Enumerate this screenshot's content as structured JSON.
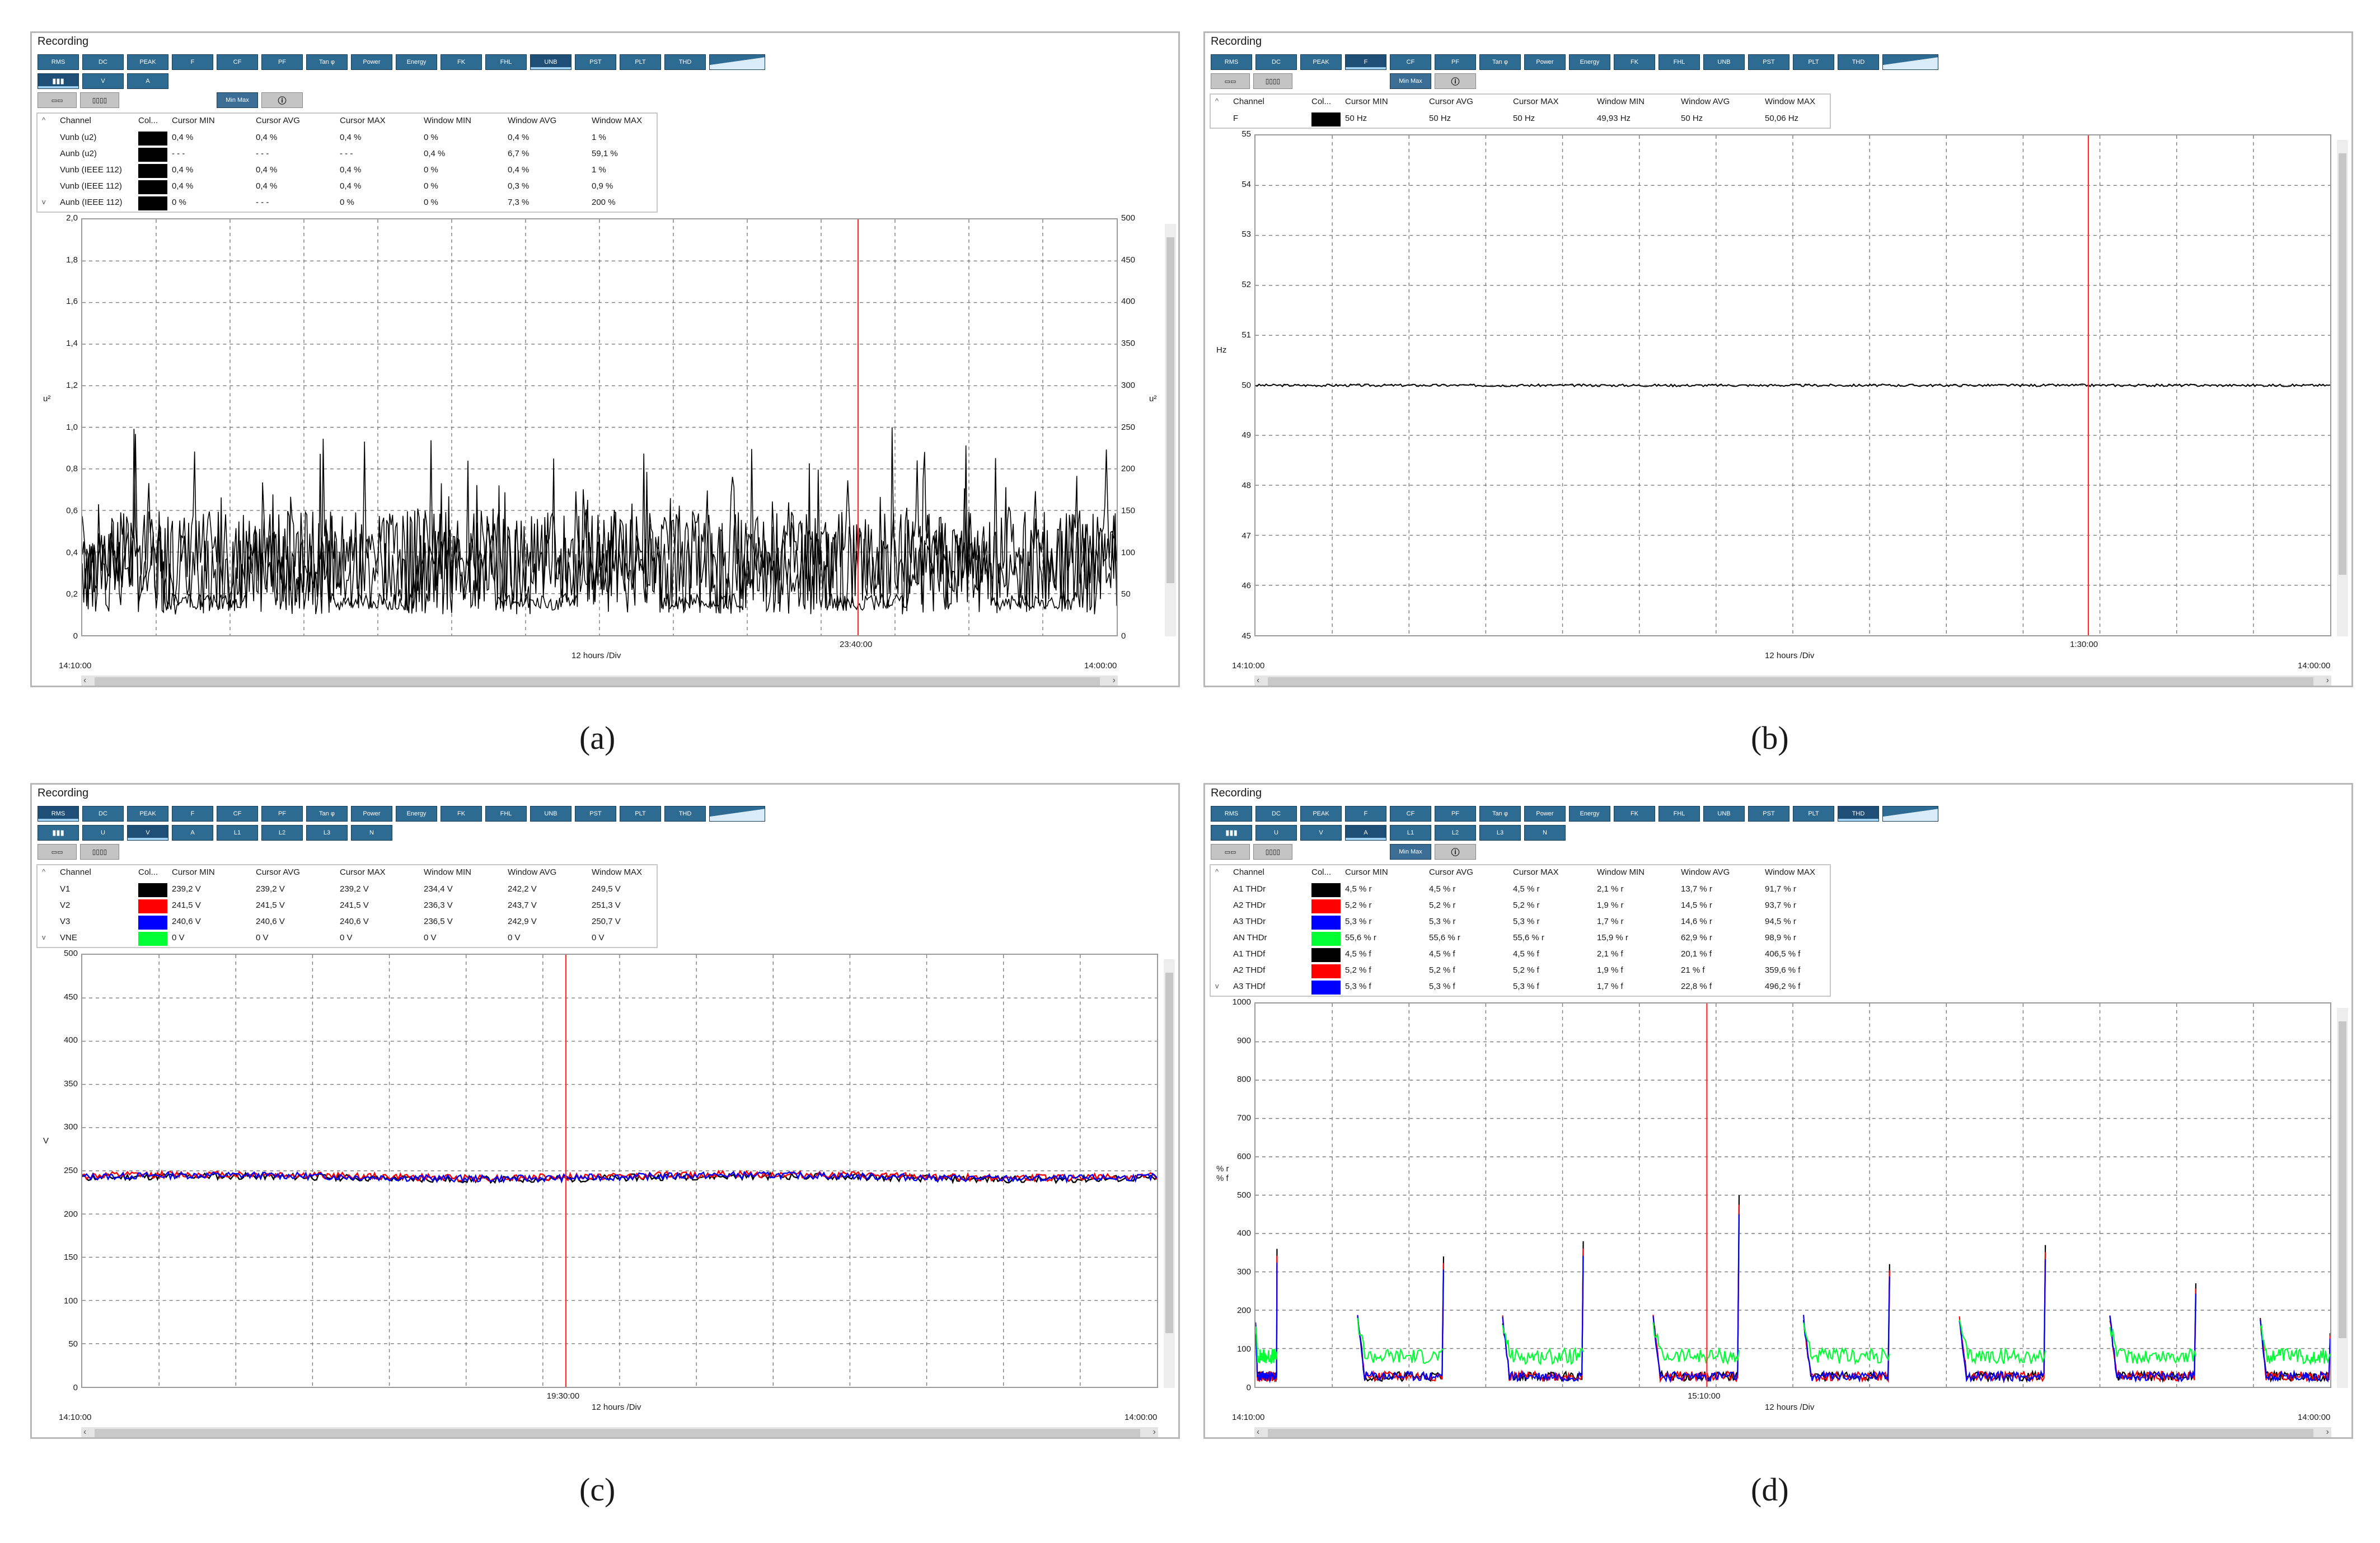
{
  "panels": [
    {
      "id": "a",
      "title": "Recording",
      "caption": "(a)",
      "toolbar1": [
        "RMS",
        "DC",
        "PEAK",
        "F",
        "CF",
        "PF",
        "Tan φ",
        "Power",
        "Energy",
        "FK",
        "FHL",
        "UNB",
        "PST",
        "PLT",
        "THD",
        ""
      ],
      "toolbar1_active": 11,
      "toolbar2": [
        "",
        "V",
        "A"
      ],
      "toolbar2_active": 0,
      "toolbar3": [
        "Min Max"
      ],
      "show_info_button": true,
      "table_headers": [
        "Channel",
        "Col...",
        "Cursor MIN",
        "Cursor AVG",
        "Cursor MAX",
        "Window MIN",
        "Window AVG",
        "Window MAX"
      ],
      "rows": [
        {
          "channel": "Vunb (u2)",
          "color": "#000000",
          "cmin": "0,4 %",
          "cavg": "0,4 %",
          "cmax": "0,4 %",
          "wmin": "0 %",
          "wavg": "0,4 %",
          "wmax": "1 %"
        },
        {
          "channel": "Aunb (u2)",
          "color": "#000000",
          "cmin": "- - -",
          "cavg": "- - -",
          "cmax": "- - -",
          "wmin": "0,4 %",
          "wavg": "6,7 %",
          "wmax": "59,1 %"
        },
        {
          "channel": "Vunb (IEEE 112)",
          "color": "#000000",
          "cmin": "0,4 %",
          "cavg": "0,4 %",
          "cmax": "0,4 %",
          "wmin": "0 %",
          "wavg": "0,4 %",
          "wmax": "1 %"
        },
        {
          "channel": "Vunb (IEEE 112)",
          "color": "#000000",
          "cmin": "0,4 %",
          "cavg": "0,4 %",
          "cmax": "0,4 %",
          "wmin": "0 %",
          "wavg": "0,3 %",
          "wmax": "0,9 %"
        },
        {
          "channel": "Aunb (IEEE 112)",
          "color": "#000000",
          "cmin": "0 %",
          "cavg": "- - -",
          "cmax": "0 %",
          "wmin": "0 %",
          "wavg": "7,3 %",
          "wmax": "200 %"
        }
      ],
      "yaxis_ticks": [
        "2,0",
        "1,8",
        "1,6",
        "1,4",
        "1,2",
        "1,0",
        "0,8",
        "0,6",
        "0,4",
        "0,2",
        "0"
      ],
      "yaxis_label": "u²",
      "yaxis2_ticks": [
        "500",
        "450",
        "400",
        "350",
        "300",
        "250",
        "200",
        "150",
        "100",
        "50",
        "0"
      ],
      "yaxis2_label": "u²",
      "x_start": "14:10:00",
      "x_end": "14:00:00",
      "x_div": "12 hours /Div",
      "cursor_label": "23:40:00",
      "chart_data": {
        "type": "line",
        "ylim": [
          0,
          2.0
        ],
        "y2lim": [
          0,
          500
        ],
        "cursor_fraction": 0.75,
        "grid": true,
        "series_color": "#000000",
        "x": "time 14:10:00 to 14:00:00",
        "signal": "unbalance — noisy trace mostly between 0 and 1,0"
      }
    },
    {
      "id": "b",
      "title": "Recording",
      "caption": "(b)",
      "toolbar1": [
        "RMS",
        "DC",
        "PEAK",
        "F",
        "CF",
        "PF",
        "Tan φ",
        "Power",
        "Energy",
        "FK",
        "FHL",
        "UNB",
        "PST",
        "PLT",
        "THD",
        ""
      ],
      "toolbar1_active": 3,
      "toolbar2": [],
      "toolbar2_active": -1,
      "toolbar3": [
        "Min Max"
      ],
      "show_info_button": true,
      "table_headers": [
        "Channel",
        "Col...",
        "Cursor MIN",
        "Cursor AVG",
        "Cursor MAX",
        "Window MIN",
        "Window AVG",
        "Window MAX"
      ],
      "rows": [
        {
          "channel": "F",
          "color": "#000000",
          "cmin": "50 Hz",
          "cavg": "50 Hz",
          "cmax": "50 Hz",
          "wmin": "49,93 Hz",
          "wavg": "50 Hz",
          "wmax": "50,06 Hz"
        }
      ],
      "yaxis_ticks": [
        "55",
        "54",
        "53",
        "52",
        "51",
        "50",
        "49",
        "48",
        "47",
        "46",
        "45"
      ],
      "yaxis_label": "Hz",
      "yaxis2_ticks": [],
      "yaxis2_label": "",
      "x_start": "14:10:00",
      "x_end": "14:00:00",
      "x_div": "12 hours /Div",
      "cursor_label": "1:30:00",
      "chart_data": {
        "type": "line",
        "ylim": [
          45,
          55
        ],
        "cursor_fraction": 0.775,
        "grid": true,
        "series": [
          {
            "name": "F",
            "color": "#000000",
            "level": 50.0
          }
        ]
      }
    },
    {
      "id": "c",
      "title": "Recording",
      "caption": "(c)",
      "toolbar1": [
        "RMS",
        "DC",
        "PEAK",
        "F",
        "CF",
        "PF",
        "Tan φ",
        "Power",
        "Energy",
        "FK",
        "FHL",
        "UNB",
        "PST",
        "PLT",
        "THD",
        ""
      ],
      "toolbar1_active": 0,
      "toolbar2": [
        "",
        "U",
        "V",
        "A",
        "L1",
        "L2",
        "L3",
        "N"
      ],
      "toolbar2_active": 2,
      "toolbar3": [],
      "show_info_button": false,
      "table_headers": [
        "Channel",
        "Col...",
        "Cursor MIN",
        "Cursor AVG",
        "Cursor MAX",
        "Window MIN",
        "Window AVG",
        "Window MAX"
      ],
      "rows": [
        {
          "channel": "V1",
          "color": "#000000",
          "cmin": "239,2 V",
          "cavg": "239,2 V",
          "cmax": "239,2 V",
          "wmin": "234,4 V",
          "wavg": "242,2 V",
          "wmax": "249,5 V"
        },
        {
          "channel": "V2",
          "color": "#ff0000",
          "cmin": "241,5 V",
          "cavg": "241,5 V",
          "cmax": "241,5 V",
          "wmin": "236,3 V",
          "wavg": "243,7 V",
          "wmax": "251,3 V"
        },
        {
          "channel": "V3",
          "color": "#0000ff",
          "cmin": "240,6 V",
          "cavg": "240,6 V",
          "cmax": "240,6 V",
          "wmin": "236,5 V",
          "wavg": "242,9 V",
          "wmax": "250,7 V"
        },
        {
          "channel": "VNE",
          "color": "#00ff33",
          "cmin": "0 V",
          "cavg": "0 V",
          "cmax": "0 V",
          "wmin": "0 V",
          "wavg": "0 V",
          "wmax": "0 V"
        }
      ],
      "yaxis_ticks": [
        "500",
        "450",
        "400",
        "350",
        "300",
        "250",
        "200",
        "150",
        "100",
        "50",
        "0"
      ],
      "yaxis_label": "V",
      "yaxis2_ticks": [],
      "yaxis2_label": "",
      "x_start": "14:10:00",
      "x_end": "14:00:00",
      "x_div": "12 hours /Div",
      "cursor_label": "19:30:00",
      "chart_data": {
        "type": "line",
        "ylim": [
          0,
          500
        ],
        "cursor_fraction": 0.45,
        "grid": true,
        "series": [
          {
            "name": "V1",
            "color": "#000000",
            "level": 242
          },
          {
            "name": "V2",
            "color": "#ff0000",
            "level": 244
          },
          {
            "name": "V3",
            "color": "#0000ff",
            "level": 243
          }
        ]
      }
    },
    {
      "id": "d",
      "title": "Recording",
      "caption": "(d)",
      "toolbar1": [
        "RMS",
        "DC",
        "PEAK",
        "F",
        "CF",
        "PF",
        "Tan φ",
        "Power",
        "Energy",
        "FK",
        "FHL",
        "UNB",
        "PST",
        "PLT",
        "THD",
        ""
      ],
      "toolbar1_active": 14,
      "toolbar2": [
        "",
        "U",
        "V",
        "A",
        "L1",
        "L2",
        "L3",
        "N"
      ],
      "toolbar2_active": 3,
      "toolbar3": [
        "Min Max"
      ],
      "show_info_button": true,
      "table_headers": [
        "Channel",
        "Col...",
        "Cursor MIN",
        "Cursor AVG",
        "Cursor MAX",
        "Window MIN",
        "Window AVG",
        "Window MAX"
      ],
      "rows": [
        {
          "channel": "A1 THDr",
          "color": "#000000",
          "cmin": "4,5 % r",
          "cavg": "4,5 % r",
          "cmax": "4,5 % r",
          "wmin": "2,1 % r",
          "wavg": "13,7 % r",
          "wmax": "91,7 % r"
        },
        {
          "channel": "A2 THDr",
          "color": "#ff0000",
          "cmin": "5,2 % r",
          "cavg": "5,2 % r",
          "cmax": "5,2 % r",
          "wmin": "1,9 % r",
          "wavg": "14,5 % r",
          "wmax": "93,7 % r"
        },
        {
          "channel": "A3 THDr",
          "color": "#0000ff",
          "cmin": "5,3 % r",
          "cavg": "5,3 % r",
          "cmax": "5,3 % r",
          "wmin": "1,7 % r",
          "wavg": "14,6 % r",
          "wmax": "94,5 % r"
        },
        {
          "channel": "AN THDr",
          "color": "#00ff33",
          "cmin": "55,6 % r",
          "cavg": "55,6 % r",
          "cmax": "55,6 % r",
          "wmin": "15,9 % r",
          "wavg": "62,9 % r",
          "wmax": "98,9 % r"
        },
        {
          "channel": "A1 THDf",
          "color": "#000000",
          "cmin": "4,5 % f",
          "cavg": "4,5 % f",
          "cmax": "4,5 % f",
          "wmin": "2,1 % f",
          "wavg": "20,1 % f",
          "wmax": "406,5 % f"
        },
        {
          "channel": "A2 THDf",
          "color": "#ff0000",
          "cmin": "5,2 % f",
          "cavg": "5,2 % f",
          "cmax": "5,2 % f",
          "wmin": "1,9 % f",
          "wavg": "21 % f",
          "wmax": "359,6 % f"
        },
        {
          "channel": "A3 THDf",
          "color": "#0000ff",
          "cmin": "5,3 % f",
          "cavg": "5,3 % f",
          "cmax": "5,3 % f",
          "wmin": "1,7 % f",
          "wavg": "22,8 % f",
          "wmax": "496,2 % f"
        }
      ],
      "yaxis_ticks": [
        "1000",
        "900",
        "800",
        "700",
        "600",
        "500",
        "400",
        "300",
        "200",
        "100",
        "0"
      ],
      "yaxis_label": "% r\n% f",
      "yaxis2_ticks": [],
      "yaxis2_label": "",
      "x_start": "14:10:00",
      "x_end": "14:00:00",
      "x_div": "12 hours /Div",
      "cursor_label": "15:10:00",
      "chart_data": {
        "type": "line",
        "ylim": [
          0,
          1000
        ],
        "cursor_fraction": 0.42,
        "grid": true,
        "series": [
          {
            "name": "A1 THDf",
            "color": "#000000"
          },
          {
            "name": "A2 THDf",
            "color": "#ff0000"
          },
          {
            "name": "A3 THDf",
            "color": "#0000ff"
          },
          {
            "name": "AN THDr",
            "color": "#00ff33"
          }
        ],
        "spike_peaks": [
          360,
          340,
          380,
          500,
          320,
          370,
          270,
          140
        ]
      }
    }
  ]
}
